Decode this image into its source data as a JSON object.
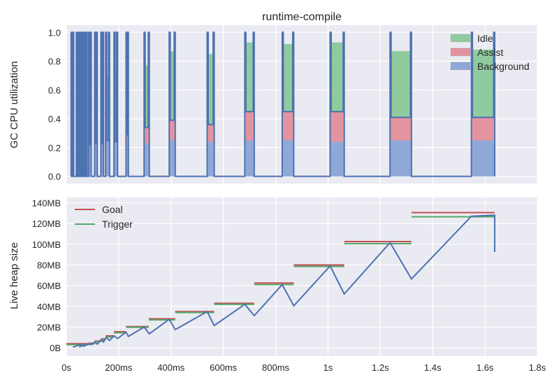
{
  "figure": {
    "title": "runtime-compile",
    "colors": {
      "background": "#eaeaf2",
      "grid": "#ffffff",
      "idle": "#8fcb9e",
      "assist": "#e3939e",
      "background_series": "#8fa8d8",
      "utilization_line": "#4c72b0",
      "heap_line": "#4c72b0",
      "goal": "#c44e52",
      "trigger": "#55a868"
    }
  },
  "chart_data": [
    {
      "type": "area",
      "title": "runtime-compile",
      "xlabel": "",
      "ylabel": "GC CPU utilization",
      "xlim": [
        0,
        1.8
      ],
      "ylim": [
        -0.05,
        1.05
      ],
      "yticks": [
        0.0,
        0.2,
        0.4,
        0.6,
        0.8,
        1.0
      ],
      "ytick_labels": [
        "0.0",
        "0.2",
        "0.4",
        "0.6",
        "0.8",
        "1.0"
      ],
      "legend": {
        "placement": "top-right",
        "entries": [
          "Idle",
          "Assist",
          "Background"
        ]
      },
      "grid": true,
      "burst_spikes_seconds": [
        0.018,
        0.024,
        0.038,
        0.045,
        0.052,
        0.058,
        0.063,
        0.068,
        0.075
      ],
      "gc_cycles": [
        {
          "start": 0.085,
          "end": 0.095,
          "background": 0.22,
          "assist": 0.22,
          "total": 0.5
        },
        {
          "start": 0.108,
          "end": 0.118,
          "background": 0.23,
          "assist": 0.23,
          "total": 0.55
        },
        {
          "start": 0.132,
          "end": 0.142,
          "background": 0.23,
          "assist": 0.23,
          "total": 0.6
        },
        {
          "start": 0.15,
          "end": 0.165,
          "background": 0.25,
          "assist": 0.25,
          "total": 0.7
        },
        {
          "start": 0.182,
          "end": 0.196,
          "background": 0.24,
          "assist": 0.24,
          "total": 0.73
        },
        {
          "start": 0.228,
          "end": 0.237,
          "background": 0.22,
          "assist": 0.29,
          "total": 0.77
        },
        {
          "start": 0.297,
          "end": 0.317,
          "background": 0.23,
          "assist": 0.34,
          "total": 0.77
        },
        {
          "start": 0.393,
          "end": 0.416,
          "background": 0.25,
          "assist": 0.39,
          "total": 0.87
        },
        {
          "start": 0.538,
          "end": 0.565,
          "background": 0.24,
          "assist": 0.36,
          "total": 0.85
        },
        {
          "start": 0.682,
          "end": 0.718,
          "background": 0.25,
          "assist": 0.45,
          "total": 0.93
        },
        {
          "start": 0.825,
          "end": 0.869,
          "background": 0.25,
          "assist": 0.45,
          "total": 0.92
        },
        {
          "start": 1.008,
          "end": 1.062,
          "background": 0.24,
          "assist": 0.45,
          "total": 0.93
        },
        {
          "start": 1.237,
          "end": 1.319,
          "background": 0.25,
          "assist": 0.41,
          "total": 0.87
        },
        {
          "start": 1.548,
          "end": 1.637,
          "background": 0.25,
          "assist": 0.41,
          "total": 0.88
        }
      ]
    },
    {
      "type": "line",
      "title": "",
      "xlabel": "",
      "ylabel": "Live heap size",
      "xlim": [
        0,
        1.8
      ],
      "ylim_mb": [
        -8,
        145
      ],
      "xticks": [
        0,
        0.2,
        0.4,
        0.6,
        0.8,
        1.0,
        1.2,
        1.4,
        1.6,
        1.8
      ],
      "xtick_labels": [
        "0s",
        "200ms",
        "400ms",
        "600ms",
        "800ms",
        "1s",
        "1.2s",
        "1.4s",
        "1.6s",
        "1.8s"
      ],
      "yticks_mb": [
        0,
        20,
        40,
        60,
        80,
        100,
        120,
        140
      ],
      "ytick_labels": [
        "0B",
        "20MB",
        "40MB",
        "60MB",
        "80MB",
        "100MB",
        "120MB",
        "140MB"
      ],
      "legend": {
        "placement": "top-left",
        "entries": [
          "Goal",
          "Trigger"
        ]
      },
      "grid": true,
      "heap_cycles_mb": [
        {
          "t_start": 0.025,
          "start": 0.5,
          "t_end": 0.052,
          "end": 3.0
        },
        {
          "t_start": 0.052,
          "start": 1.0,
          "t_end": 0.065,
          "end": 3.0
        },
        {
          "t_start": 0.065,
          "start": 1.5,
          "t_end": 0.085,
          "end": 3.5
        },
        {
          "t_start": 0.095,
          "start": 3.0,
          "t_end": 0.108,
          "end": 5.5
        },
        {
          "t_start": 0.118,
          "start": 3.5,
          "t_end": 0.132,
          "end": 7.5
        },
        {
          "t_start": 0.142,
          "start": 5.5,
          "t_end": 0.152,
          "end": 10.0
        },
        {
          "t_start": 0.165,
          "start": 7.0,
          "t_end": 0.182,
          "end": 11.5
        },
        {
          "t_start": 0.196,
          "start": 9.0,
          "t_end": 0.228,
          "end": 15.0
        },
        {
          "t_start": 0.237,
          "start": 11.0,
          "t_end": 0.297,
          "end": 20.0
        },
        {
          "t_start": 0.317,
          "start": 13.5,
          "t_end": 0.393,
          "end": 27.5
        },
        {
          "t_start": 0.416,
          "start": 17.5,
          "t_end": 0.538,
          "end": 35.0
        },
        {
          "t_start": 0.565,
          "start": 21.5,
          "t_end": 0.682,
          "end": 42.0
        },
        {
          "t_start": 0.718,
          "start": 31.0,
          "t_end": 0.825,
          "end": 61.0
        },
        {
          "t_start": 0.869,
          "start": 40.5,
          "t_end": 1.008,
          "end": 79.0
        },
        {
          "t_start": 1.062,
          "start": 52.0,
          "t_end": 1.237,
          "end": 101.5
        },
        {
          "t_start": 1.319,
          "start": 66.5,
          "t_end": 1.548,
          "end": 127.0
        }
      ],
      "final_drop": {
        "t": 1.637,
        "from": 128.0,
        "to": 92.5
      },
      "goal_segments_mb": [
        {
          "t0": 0.0,
          "t1": 0.085,
          "value": 4.0
        },
        {
          "t0": 0.085,
          "t1": 0.108,
          "value": 4.5
        },
        {
          "t0": 0.108,
          "t1": 0.132,
          "value": 6.5
        },
        {
          "t0": 0.132,
          "t1": 0.15,
          "value": 8.5
        },
        {
          "t0": 0.15,
          "t1": 0.182,
          "value": 11.5
        },
        {
          "t0": 0.182,
          "t1": 0.228,
          "value": 15.5
        },
        {
          "t0": 0.228,
          "t1": 0.315,
          "value": 20.5
        },
        {
          "t0": 0.315,
          "t1": 0.416,
          "value": 28.0
        },
        {
          "t0": 0.416,
          "t1": 0.565,
          "value": 35.0
        },
        {
          "t0": 0.565,
          "t1": 0.718,
          "value": 43.0
        },
        {
          "t0": 0.718,
          "t1": 0.869,
          "value": 62.5
        },
        {
          "t0": 0.869,
          "t1": 1.062,
          "value": 80.0
        },
        {
          "t0": 1.062,
          "t1": 1.319,
          "value": 102.5
        },
        {
          "t0": 1.319,
          "t1": 1.637,
          "value": 130.5
        }
      ],
      "trigger_segments_mb": [
        {
          "t0": 0.0,
          "t1": 0.085,
          "value": 3.0
        },
        {
          "t0": 0.085,
          "t1": 0.108,
          "value": 3.8
        },
        {
          "t0": 0.108,
          "t1": 0.132,
          "value": 5.8
        },
        {
          "t0": 0.132,
          "t1": 0.15,
          "value": 7.5
        },
        {
          "t0": 0.15,
          "t1": 0.182,
          "value": 10.5
        },
        {
          "t0": 0.182,
          "t1": 0.228,
          "value": 14.5
        },
        {
          "t0": 0.228,
          "t1": 0.315,
          "value": 19.8
        },
        {
          "t0": 0.315,
          "t1": 0.416,
          "value": 27.0
        },
        {
          "t0": 0.416,
          "t1": 0.565,
          "value": 34.0
        },
        {
          "t0": 0.565,
          "t1": 0.718,
          "value": 42.0
        },
        {
          "t0": 0.718,
          "t1": 0.869,
          "value": 61.0
        },
        {
          "t0": 0.869,
          "t1": 1.062,
          "value": 78.5
        },
        {
          "t0": 1.062,
          "t1": 1.319,
          "value": 100.5
        },
        {
          "t0": 1.319,
          "t1": 1.637,
          "value": 126.5
        }
      ]
    }
  ]
}
